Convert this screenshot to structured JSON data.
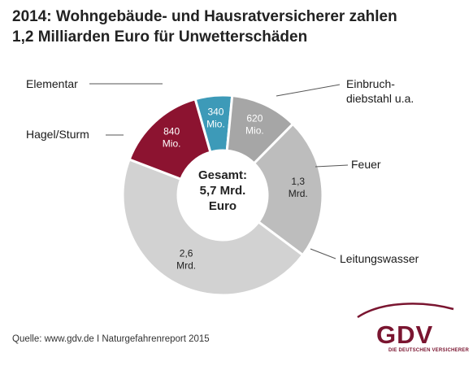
{
  "chart_data": {
    "type": "pie",
    "title": "2014: Wohngebäude- und Hausratversicherer zahlen",
    "subtitle": "1,2 Milliarden Euro für Unwetterschäden",
    "center_label": [
      "Gesamt:",
      "5,7 Mrd.",
      "Euro"
    ],
    "total": 5.7,
    "unit": "Mrd. Euro",
    "slices": [
      {
        "name": "Elementar",
        "value": 0.34,
        "value_label": [
          "340",
          "Mio."
        ],
        "color": "#3d9ab8"
      },
      {
        "name": "Einbruch-diebstahl u.a.",
        "name_lines": [
          "Einbruch-",
          "diebstahl u.a."
        ],
        "value": 0.62,
        "value_label": [
          "620",
          "Mio."
        ],
        "color": "#a6a6a6"
      },
      {
        "name": "Feuer",
        "value": 1.3,
        "value_label": [
          "1,3",
          "Mrd."
        ],
        "color": "#bdbdbd"
      },
      {
        "name": "Leitungswasser",
        "value": 2.6,
        "value_label": [
          "2,6",
          "Mrd."
        ],
        "color": "#d2d2d2"
      },
      {
        "name": "Hagel/Sturm",
        "value": 0.84,
        "value_label": [
          "840",
          "Mio."
        ],
        "color": "#8c1330"
      }
    ],
    "legend": "callout-labels"
  },
  "source": "Quelle: www.gdv.de I Naturgefahrenreport 2015",
  "logo": {
    "text": "GDV",
    "subtext": "DIE DEUTSCHEN VERSICHERER",
    "color": "#7a1530"
  }
}
